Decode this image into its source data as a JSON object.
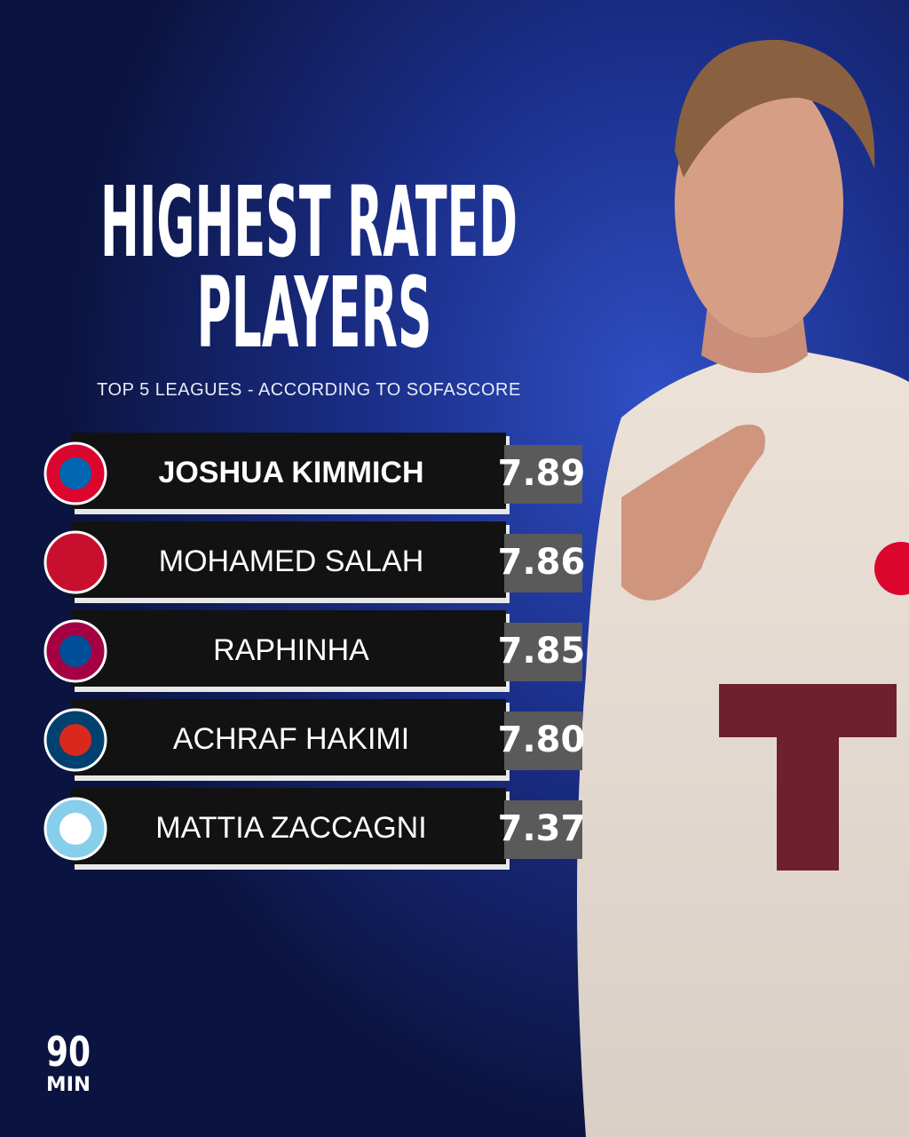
{
  "header": {
    "title": [
      "HIGHEST RATED",
      "PLAYERS"
    ],
    "subtitle": "TOP 5 LEAGUES - ACCORDING TO SOFASCORE"
  },
  "rows": [
    {
      "name": "JOSHUA KIMMICH",
      "rating": "7.89"
    },
    {
      "name": "MOHAMED SALAH",
      "rating": "7.86"
    },
    {
      "name": "RAPHINHA",
      "rating": "7.85"
    },
    {
      "name": "ACHRAF HAKIMI",
      "rating": "7.80"
    },
    {
      "name": "MATTIA ZACCAGNI",
      "rating": "7.37"
    }
  ],
  "brand": [
    "90",
    "MIN"
  ]
}
